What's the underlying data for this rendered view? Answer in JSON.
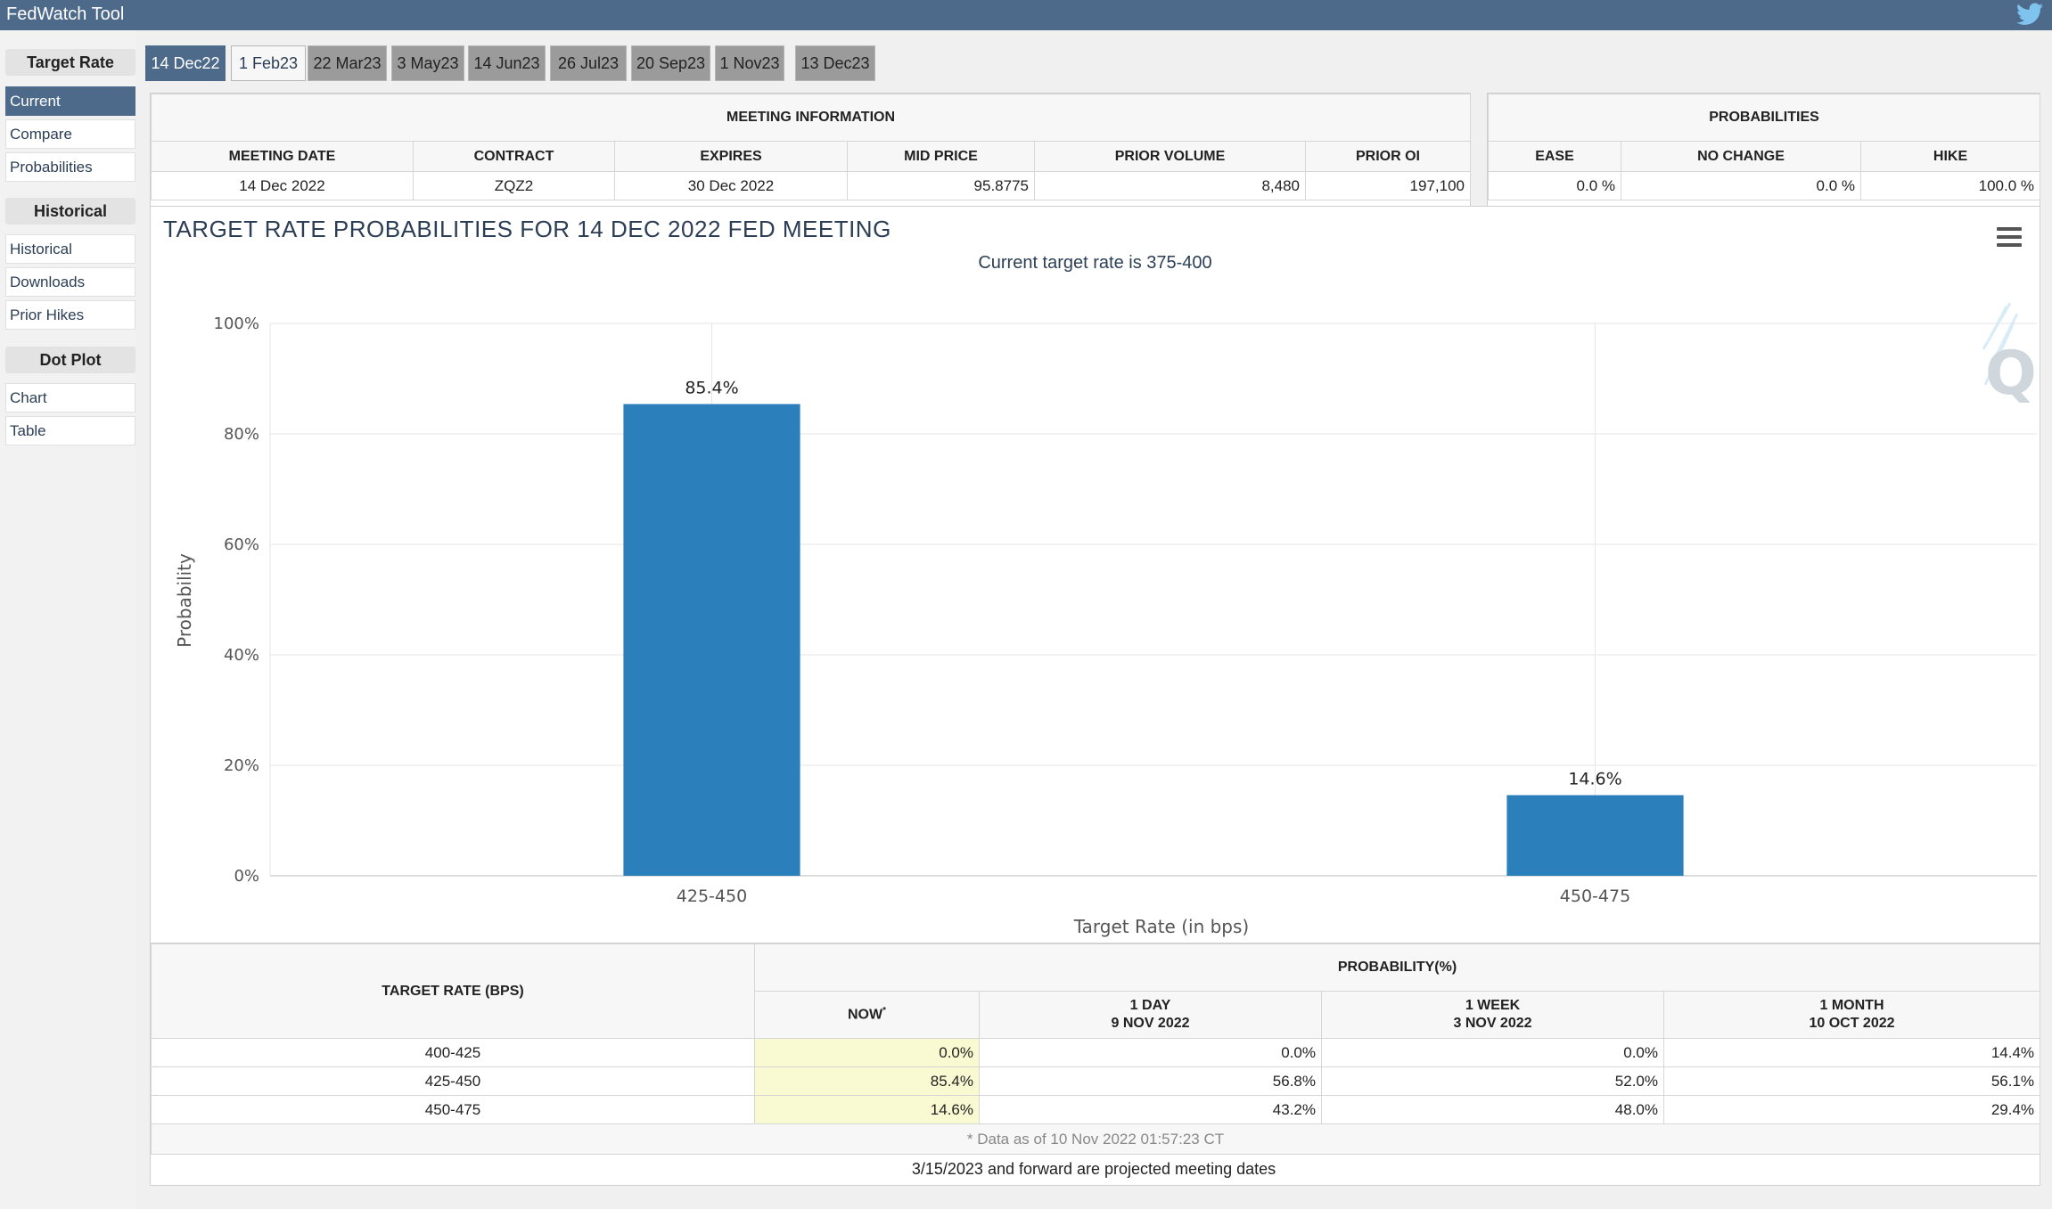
{
  "app": {
    "title": "FedWatch Tool"
  },
  "sidebar": {
    "groups": [
      {
        "label": "Target Rate",
        "items": [
          "Current",
          "Compare",
          "Probabilities"
        ]
      },
      {
        "label": "Historical",
        "items": [
          "Historical",
          "Downloads",
          "Prior Hikes"
        ]
      },
      {
        "label": "Dot Plot",
        "items": [
          "Chart",
          "Table"
        ]
      }
    ],
    "active_item": "Current"
  },
  "tabs": [
    "14 Dec22",
    "1 Feb23",
    "22 Mar23",
    "3 May23",
    "14 Jun23",
    "26 Jul23",
    "20 Sep23",
    "1 Nov23",
    "13 Dec23"
  ],
  "meeting_info": {
    "title": "MEETING INFORMATION",
    "headers": [
      "MEETING DATE",
      "CONTRACT",
      "EXPIRES",
      "MID PRICE",
      "PRIOR VOLUME",
      "PRIOR OI"
    ],
    "row": [
      "14 Dec 2022",
      "ZQZ2",
      "30 Dec 2022",
      "95.8775",
      "8,480",
      "197,100"
    ]
  },
  "probabilities": {
    "title": "PROBABILITIES",
    "headers": [
      "EASE",
      "NO CHANGE",
      "HIKE"
    ],
    "row": [
      "0.0 %",
      "0.0 %",
      "100.0 %"
    ]
  },
  "chart": {
    "title": "TARGET RATE PROBABILITIES FOR 14 DEC 2022 FED MEETING",
    "subtitle": "Current target rate is 375-400",
    "logo": "Q",
    "bar_color": "#2b7fbb"
  },
  "chart_data": {
    "type": "bar",
    "categories": [
      "425-450",
      "450-475"
    ],
    "values": [
      85.4,
      14.6
    ],
    "data_labels": [
      "85.4%",
      "14.6%"
    ],
    "xlabel": "Target Rate (in bps)",
    "ylabel": "Probability",
    "ylim": [
      0,
      100
    ],
    "yticks": [
      "0%",
      "20%",
      "40%",
      "60%",
      "80%",
      "100%"
    ],
    "grid": true
  },
  "prob_table": {
    "rate_header": "TARGET RATE (BPS)",
    "group_header": "PROBABILITY(%)",
    "columns": [
      {
        "line1": "NOW",
        "marker": "*",
        "line2": ""
      },
      {
        "line1": "1 DAY",
        "line2": "9 NOV 2022"
      },
      {
        "line1": "1 WEEK",
        "line2": "3 NOV 2022"
      },
      {
        "line1": "1 MONTH",
        "line2": "10 OCT 2022"
      }
    ],
    "rows": [
      {
        "rate": "400-425",
        "values": [
          "0.0%",
          "0.0%",
          "0.0%",
          "14.4%"
        ]
      },
      {
        "rate": "425-450",
        "values": [
          "85.4%",
          "56.8%",
          "52.0%",
          "56.1%"
        ]
      },
      {
        "rate": "450-475",
        "values": [
          "14.6%",
          "43.2%",
          "48.0%",
          "29.4%"
        ]
      }
    ],
    "footnote": "* Data as of 10 Nov 2022 01:57:23 CT"
  },
  "bottom_note": "3/15/2023 and forward are projected meeting dates"
}
